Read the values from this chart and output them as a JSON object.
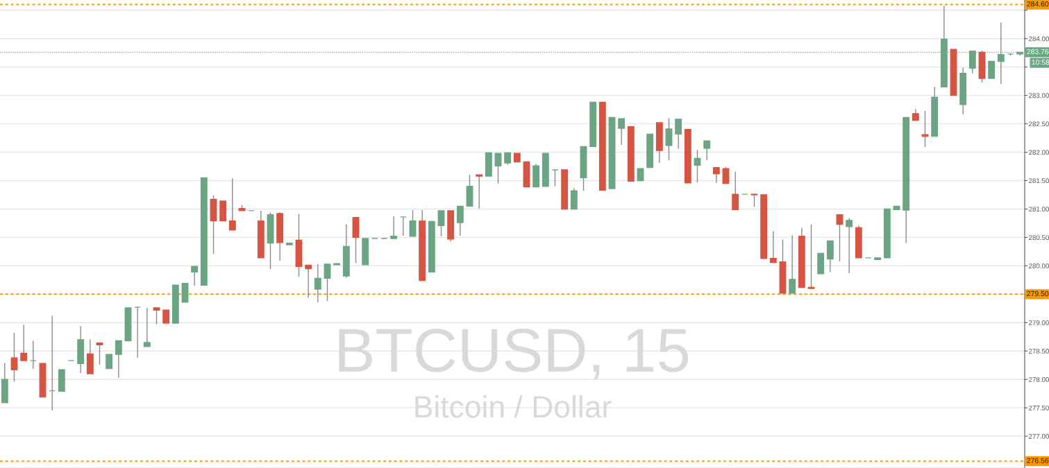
{
  "chart_data": {
    "type": "candlestick",
    "annotations": [
      "BTCUSD, 15",
      "Bitcoin / Dollar",
      "10:58"
    ],
    "categories": [
      null,
      null,
      null,
      null,
      null,
      null,
      null,
      null,
      null,
      null,
      null,
      null,
      null,
      null,
      null,
      null,
      null,
      null,
      null,
      null,
      null,
      null,
      null,
      null,
      null,
      null,
      null,
      null,
      null,
      null,
      null,
      null,
      null,
      null,
      null,
      null,
      null,
      null,
      null,
      null,
      null,
      null,
      null,
      null,
      null,
      null,
      null,
      null,
      null,
      null,
      null,
      null,
      null,
      null,
      null,
      null,
      null,
      null,
      null,
      null,
      null,
      null,
      null,
      null,
      null,
      null,
      null,
      null,
      null,
      null,
      null,
      null,
      null,
      null,
      null,
      null,
      null,
      null,
      null,
      null,
      null,
      null,
      null,
      null,
      null,
      null,
      null,
      null,
      null,
      null,
      null,
      null,
      null,
      null,
      null,
      null,
      null,
      null,
      null,
      null,
      null,
      null,
      null,
      null,
      null,
      null,
      null,
      null
    ],
    "ohlc": [
      [
        277.59,
        278.29,
        277.59,
        278.0
      ],
      [
        278.38,
        278.82,
        277.96,
        278.17
      ],
      [
        278.46,
        278.96,
        278.33,
        278.33
      ],
      [
        278.33,
        278.68,
        278.19,
        278.33
      ],
      [
        278.28,
        278.28,
        277.69,
        277.69
      ],
      [
        277.8,
        279.12,
        277.45,
        277.8
      ],
      [
        277.79,
        278.17,
        277.79,
        278.17
      ],
      [
        278.33,
        278.33,
        278.33,
        278.33
      ],
      [
        278.28,
        278.94,
        278.11,
        278.7
      ],
      [
        278.45,
        278.7,
        278.1,
        278.1
      ],
      [
        278.64,
        278.64,
        278.26,
        278.61
      ],
      [
        278.19,
        278.44,
        278.19,
        278.44
      ],
      [
        278.44,
        278.68,
        278.03,
        278.68
      ],
      [
        278.68,
        279.26,
        278.68,
        279.26
      ],
      [
        279.27,
        279.28,
        278.38,
        279.27
      ],
      [
        278.58,
        279.26,
        278.58,
        278.65
      ],
      [
        279.26,
        279.26,
        278.97,
        279.22
      ],
      [
        279.22,
        279.22,
        278.99,
        278.99
      ],
      [
        278.99,
        279.66,
        278.99,
        279.66
      ],
      [
        279.36,
        279.69,
        279.36,
        279.69
      ],
      [
        279.89,
        279.99,
        279.65,
        279.99
      ],
      [
        279.66,
        281.55,
        279.66,
        281.55
      ],
      [
        281.17,
        281.24,
        280.21,
        280.79
      ],
      [
        281.14,
        281.14,
        280.79,
        280.79
      ],
      [
        280.79,
        281.54,
        280.63,
        280.63
      ],
      [
        281.01,
        281.07,
        280.97,
        280.97
      ],
      [
        280.97,
        280.97,
        280.97,
        280.97
      ],
      [
        280.79,
        280.97,
        280.14,
        280.14
      ],
      [
        280.4,
        280.94,
        279.94,
        280.9
      ],
      [
        280.92,
        280.94,
        280.09,
        280.41
      ],
      [
        280.37,
        280.4,
        280.37,
        280.4
      ],
      [
        280.45,
        280.91,
        279.81,
        279.99
      ],
      [
        280.01,
        280.01,
        279.44,
        279.95
      ],
      [
        279.59,
        280.03,
        279.36,
        279.78
      ],
      [
        279.78,
        280.03,
        279.38,
        280.03
      ],
      [
        280.02,
        280.04,
        280.02,
        280.04
      ],
      [
        279.82,
        280.73,
        279.79,
        280.34
      ],
      [
        280.85,
        280.85,
        280.05,
        280.5
      ],
      [
        280.02,
        280.48,
        280.02,
        280.48
      ],
      [
        280.48,
        280.48,
        280.48,
        280.48
      ],
      [
        280.48,
        280.48,
        280.48,
        280.48
      ],
      [
        280.48,
        280.87,
        280.48,
        280.52
      ],
      [
        280.86,
        280.86,
        280.53,
        280.86
      ],
      [
        280.52,
        280.98,
        280.52,
        280.79
      ],
      [
        280.79,
        280.98,
        279.74,
        279.74
      ],
      [
        279.89,
        280.78,
        279.89,
        280.78
      ],
      [
        280.71,
        280.97,
        280.52,
        280.97
      ],
      [
        280.97,
        280.97,
        280.43,
        280.47
      ],
      [
        280.76,
        281.05,
        280.53,
        281.05
      ],
      [
        281.05,
        281.6,
        281.05,
        281.4
      ],
      [
        281.6,
        281.6,
        281.01,
        281.58
      ],
      [
        281.58,
        281.99,
        281.58,
        281.99
      ],
      [
        281.76,
        281.98,
        281.45,
        281.98
      ],
      [
        281.81,
        281.99,
        281.78,
        281.99
      ],
      [
        281.98,
        281.98,
        281.83,
        281.83
      ],
      [
        281.83,
        281.83,
        281.39,
        281.39
      ],
      [
        281.39,
        281.79,
        281.39,
        281.76
      ],
      [
        281.4,
        281.98,
        281.4,
        281.98
      ],
      [
        281.69,
        281.69,
        281.4,
        281.69
      ],
      [
        281.69,
        281.69,
        281.0,
        281.0
      ],
      [
        281.0,
        281.37,
        281.0,
        281.32
      ],
      [
        281.55,
        282.1,
        281.32,
        282.1
      ],
      [
        282.1,
        282.88,
        282.1,
        282.88
      ],
      [
        282.88,
        282.88,
        281.33,
        281.33
      ],
      [
        281.36,
        282.61,
        281.36,
        282.61
      ],
      [
        282.42,
        282.59,
        282.13,
        282.59
      ],
      [
        282.45,
        282.45,
        281.49,
        281.49
      ],
      [
        281.5,
        281.71,
        281.5,
        281.71
      ],
      [
        281.73,
        282.32,
        281.73,
        282.32
      ],
      [
        282.52,
        282.52,
        281.81,
        282.03
      ],
      [
        282.12,
        282.6,
        281.86,
        282.41
      ],
      [
        282.32,
        282.58,
        282.06,
        282.58
      ],
      [
        282.4,
        282.4,
        281.46,
        281.46
      ],
      [
        281.77,
        282.04,
        281.47,
        281.89
      ],
      [
        282.07,
        282.2,
        281.86,
        282.2
      ],
      [
        281.73,
        281.73,
        281.46,
        281.62
      ],
      [
        281.71,
        281.74,
        281.45,
        281.45
      ],
      [
        281.26,
        281.66,
        280.99,
        280.99
      ],
      [
        281.26,
        281.26,
        281.26,
        281.26
      ],
      [
        281.26,
        281.26,
        281.04,
        281.25
      ],
      [
        281.25,
        281.25,
        280.13,
        280.13
      ],
      [
        280.13,
        280.61,
        280.06,
        280.06
      ],
      [
        280.07,
        280.46,
        279.52,
        279.52
      ],
      [
        279.52,
        280.54,
        279.52,
        279.76
      ],
      [
        280.52,
        280.67,
        279.62,
        279.62
      ],
      [
        279.62,
        280.73,
        279.6,
        279.6
      ],
      [
        279.86,
        280.22,
        279.86,
        280.22
      ],
      [
        280.12,
        280.44,
        279.89,
        280.44
      ],
      [
        280.9,
        280.9,
        280.08,
        280.73
      ],
      [
        280.69,
        280.84,
        279.87,
        280.8
      ],
      [
        280.67,
        280.71,
        280.14,
        280.14
      ],
      [
        280.14,
        280.14,
        280.14,
        280.14
      ],
      [
        280.11,
        280.14,
        280.11,
        280.14
      ],
      [
        280.14,
        281.0,
        280.14,
        281.0
      ],
      [
        280.99,
        281.05,
        280.99,
        281.05
      ],
      [
        280.98,
        282.61,
        280.4,
        282.61
      ],
      [
        282.68,
        282.76,
        282.56,
        282.56
      ],
      [
        282.31,
        282.73,
        282.09,
        282.28
      ],
      [
        282.28,
        283.15,
        282.28,
        282.97
      ],
      [
        283.15,
        284.58,
        283.15,
        283.99
      ],
      [
        283.81,
        283.81,
        283.0,
        283.0
      ],
      [
        282.84,
        283.49,
        282.67,
        283.39
      ],
      [
        283.48,
        283.78,
        283.39,
        283.78
      ],
      [
        283.76,
        283.79,
        283.23,
        283.3
      ],
      [
        283.3,
        283.6,
        283.3,
        283.6
      ],
      [
        283.6,
        284.28,
        283.2,
        283.72
      ],
      [
        283.73,
        283.73,
        283.7,
        283.73
      ],
      [
        283.73,
        283.76,
        283.7,
        283.76
      ]
    ],
    "colors": [
      "#6ba583",
      "#d75442",
      "#d75442",
      "#6ba583",
      "#d75442",
      "#6ba583",
      "#6ba583",
      "#6ba583",
      "#6ba583",
      "#d75442",
      "#d75442",
      "#6ba583",
      "#6ba583",
      "#6ba583",
      "#6ba583",
      "#6ba583",
      "#d75442",
      "#d75442",
      "#6ba583",
      "#6ba583",
      "#6ba583",
      "#6ba583",
      "#d75442",
      "#d75442",
      "#d75442",
      "#d75442",
      "#6ba583",
      "#d75442",
      "#6ba583",
      "#d75442",
      "#6ba583",
      "#d75442",
      "#d75442",
      "#6ba583",
      "#6ba583",
      "#6ba583",
      "#6ba583",
      "#d75442",
      "#6ba583",
      "#6ba583",
      "#6ba583",
      "#6ba583",
      "#6ba583",
      "#6ba583",
      "#d75442",
      "#6ba583",
      "#6ba583",
      "#d75442",
      "#6ba583",
      "#6ba583",
      "#d75442",
      "#6ba583",
      "#6ba583",
      "#6ba583",
      "#d75442",
      "#d75442",
      "#6ba583",
      "#6ba583",
      "#6ba583",
      "#d75442",
      "#6ba583",
      "#6ba583",
      "#6ba583",
      "#d75442",
      "#6ba583",
      "#6ba583",
      "#d75442",
      "#6ba583",
      "#6ba583",
      "#d75442",
      "#6ba583",
      "#6ba583",
      "#d75442",
      "#6ba583",
      "#6ba583",
      "#d75442",
      "#d75442",
      "#d75442",
      "#6ba583",
      "#d75442",
      "#d75442",
      "#d75442",
      "#d75442",
      "#6ba583",
      "#d75442",
      "#d75442",
      "#6ba583",
      "#6ba583",
      "#d75442",
      "#6ba583",
      "#d75442",
      "#6ba583",
      "#6ba583",
      "#6ba583",
      "#6ba583",
      "#6ba583",
      "#d75442",
      "#d75442",
      "#6ba583",
      "#6ba583",
      "#d75442",
      "#6ba583",
      "#6ba583",
      "#d75442",
      "#6ba583",
      "#6ba583",
      "#6ba583",
      "#6ba583"
    ],
    "ylim": [
      276.44,
      284.68
    ],
    "yticks": [
      {
        "value": 277.0,
        "label": "277.00"
      },
      {
        "value": 277.5,
        "label": "277.50"
      },
      {
        "value": 278.0,
        "label": "278.00"
      },
      {
        "value": 278.5,
        "label": "278.50"
      },
      {
        "value": 279.0,
        "label": "279.00"
      },
      {
        "value": 279.5,
        "label": null
      },
      {
        "value": 280.0,
        "label": "280.00"
      },
      {
        "value": 280.5,
        "label": "280.50"
      },
      {
        "value": 281.0,
        "label": "281.00"
      },
      {
        "value": 281.5,
        "label": "281.50"
      },
      {
        "value": 282.0,
        "label": "282.00"
      },
      {
        "value": 282.5,
        "label": "282.50"
      },
      {
        "value": 283.0,
        "label": "283.00"
      },
      {
        "value": 283.5,
        "label": null
      },
      {
        "value": 284.0,
        "label": "284.00"
      },
      {
        "value": 284.5,
        "label": null
      }
    ],
    "tick_labels": "y",
    "grid": "y",
    "ref_lines": [
      {
        "axis": "y",
        "value": 284.6,
        "label": "284.60",
        "color": "#ff9800",
        "line_style": "dashed"
      },
      {
        "axis": "y",
        "value": 283.76,
        "label": "283.76",
        "color": "#6ba583",
        "line_style": "dotted"
      },
      {
        "axis": "y",
        "value": 279.5,
        "label": "279.50",
        "color": "#ff9800",
        "line_style": "dashed"
      },
      {
        "axis": "y",
        "value": 276.56,
        "label": "276.56",
        "color": "#ff9800",
        "line_style": "dashed"
      }
    ]
  }
}
